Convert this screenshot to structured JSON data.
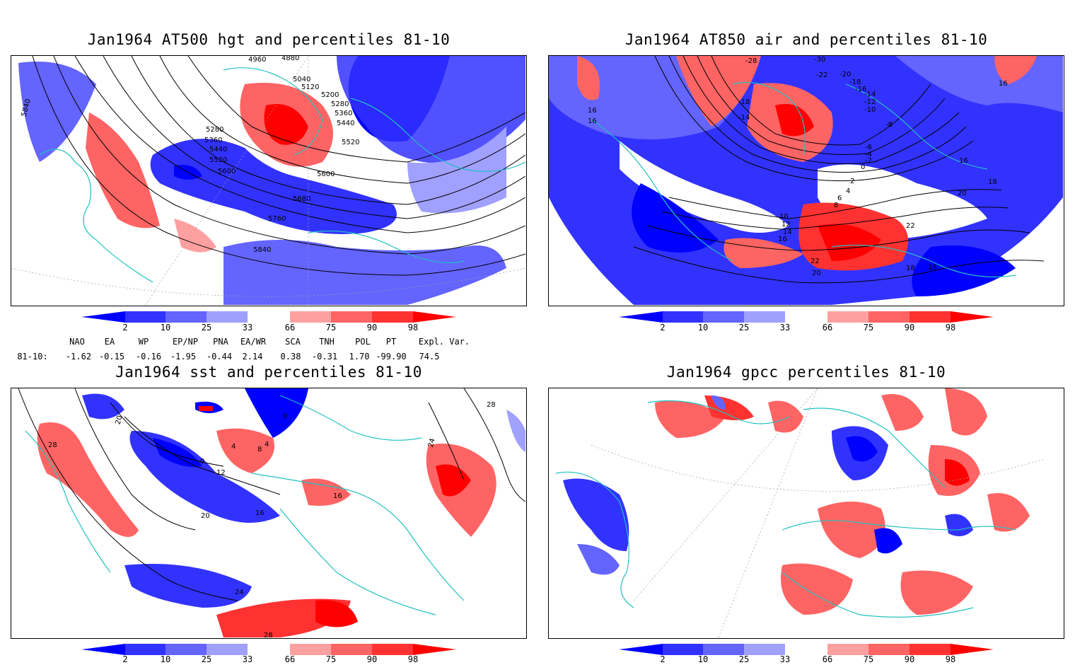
{
  "panels": {
    "hgt500": {
      "title": "Jan1964 AT500 hgt and percentiles 81-10",
      "contour_labels": [
        "4960",
        "4880",
        "5040",
        "5120",
        "5200",
        "5280",
        "5360",
        "5440",
        "5520",
        "5280",
        "5360",
        "5440",
        "5520",
        "5600",
        "5600",
        "5680",
        "5760",
        "5840",
        "5840"
      ]
    },
    "air850": {
      "title": "Jan1964 AT850 air and percentiles 81-10",
      "contour_labels": [
        "-28",
        "-30",
        "-22",
        "-20",
        "-18",
        "-16",
        "-14",
        "-12",
        "-10",
        "-8",
        "-6",
        "-4",
        "-2",
        "0",
        "2",
        "4",
        "6",
        "8",
        "10",
        "12",
        "14",
        "16",
        "16",
        "16",
        "18",
        "20",
        "22",
        "22",
        "20",
        "18",
        "18",
        "16",
        "16",
        "-18",
        "-14"
      ]
    },
    "sst": {
      "title": "Jan1964 sst and percentiles 81-10",
      "contour_labels": [
        "28",
        "20",
        "4",
        "8",
        "0",
        "4",
        "0",
        "12",
        "16",
        "16",
        "20",
        "24",
        "28",
        "24",
        "28"
      ]
    },
    "gpcc": {
      "title": "Jan1964 gpcc percentiles 81-10"
    }
  },
  "colorbar": {
    "ticks": [
      "2",
      "10",
      "25",
      "33",
      "66",
      "75",
      "90",
      "98"
    ],
    "colors": {
      "lt2": "#0000ff",
      "b2_10": "#3232ff",
      "b10_25": "#6464ff",
      "b25_33": "#a0a0ff",
      "b33_66": "#ffffff",
      "b66_75": "#ffa0a0",
      "b75_90": "#ff6464",
      "b90_98": "#ff3232",
      "gt98": "#ff0000"
    }
  },
  "indices": {
    "headers": [
      "NAO",
      "EA",
      "WP",
      "EP/NP",
      "PNA",
      "EA/WR",
      "SCA",
      "TNH",
      "POL",
      "PT",
      "Expl. Var."
    ],
    "row_label": "81-10:",
    "values": [
      "-1.62",
      "-0.15",
      "-0.16",
      "-1.95",
      "-0.44",
      "2.14",
      "0.38",
      "-0.31",
      "1.70",
      "-99.90",
      "74.5"
    ]
  },
  "colors": {
    "coastline": "#20c0c0",
    "contour": "#000000",
    "grid": "#a0a0a0"
  }
}
